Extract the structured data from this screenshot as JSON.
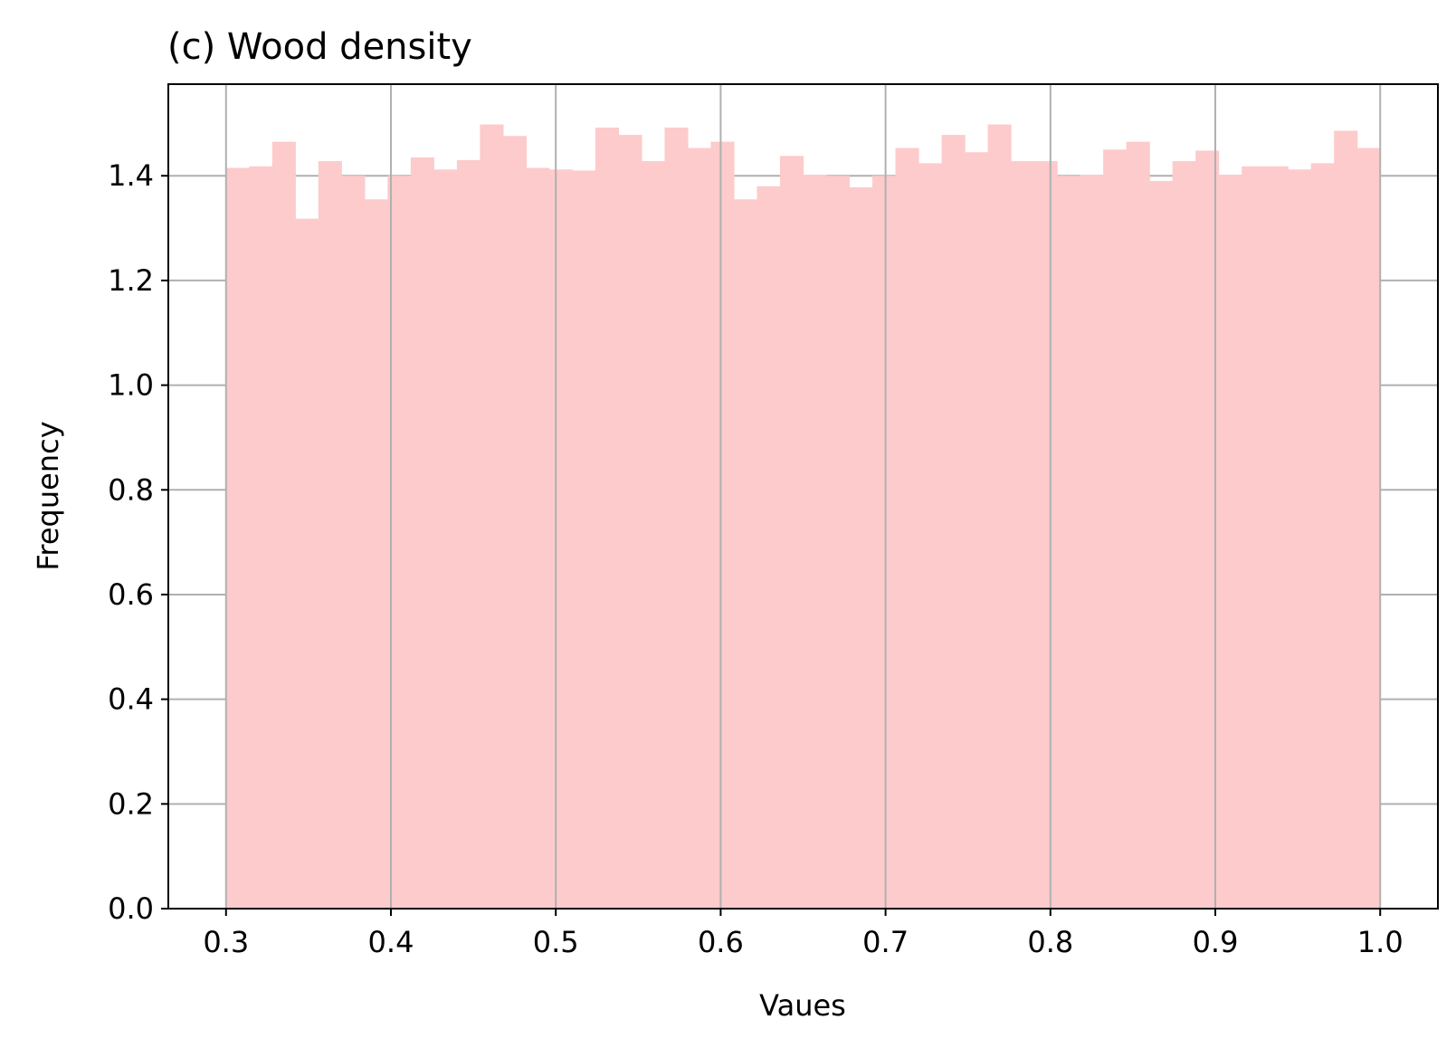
{
  "chart_data": {
    "type": "bar",
    "title": "(c) Wood density",
    "xlabel": "Vaues",
    "ylabel": "Frequency",
    "xlim": [
      0.265,
      1.035
    ],
    "ylim": [
      0.0,
      1.575
    ],
    "xticks": [
      "0.3",
      "0.4",
      "0.5",
      "0.6",
      "0.7",
      "0.8",
      "0.9",
      "1.0"
    ],
    "yticks": [
      "0.0",
      "0.2",
      "0.4",
      "0.6",
      "0.8",
      "1.0",
      "1.2",
      "1.4"
    ],
    "grid": true,
    "bar_color": "#fdcbcb",
    "bin_start": 0.3,
    "bin_end": 1.0,
    "values": [
      1.415,
      1.418,
      1.465,
      1.318,
      1.428,
      1.4,
      1.355,
      1.4,
      1.435,
      1.412,
      1.43,
      1.498,
      1.476,
      1.415,
      1.412,
      1.41,
      1.492,
      1.478,
      1.428,
      1.492,
      1.453,
      1.465,
      1.355,
      1.38,
      1.438,
      1.402,
      1.4,
      1.378,
      1.4,
      1.453,
      1.424,
      1.478,
      1.445,
      1.498,
      1.428,
      1.428,
      1.4,
      1.402,
      1.45,
      1.465,
      1.39,
      1.428,
      1.448,
      1.402,
      1.418,
      1.418,
      1.412,
      1.424,
      1.486,
      1.453
    ]
  }
}
